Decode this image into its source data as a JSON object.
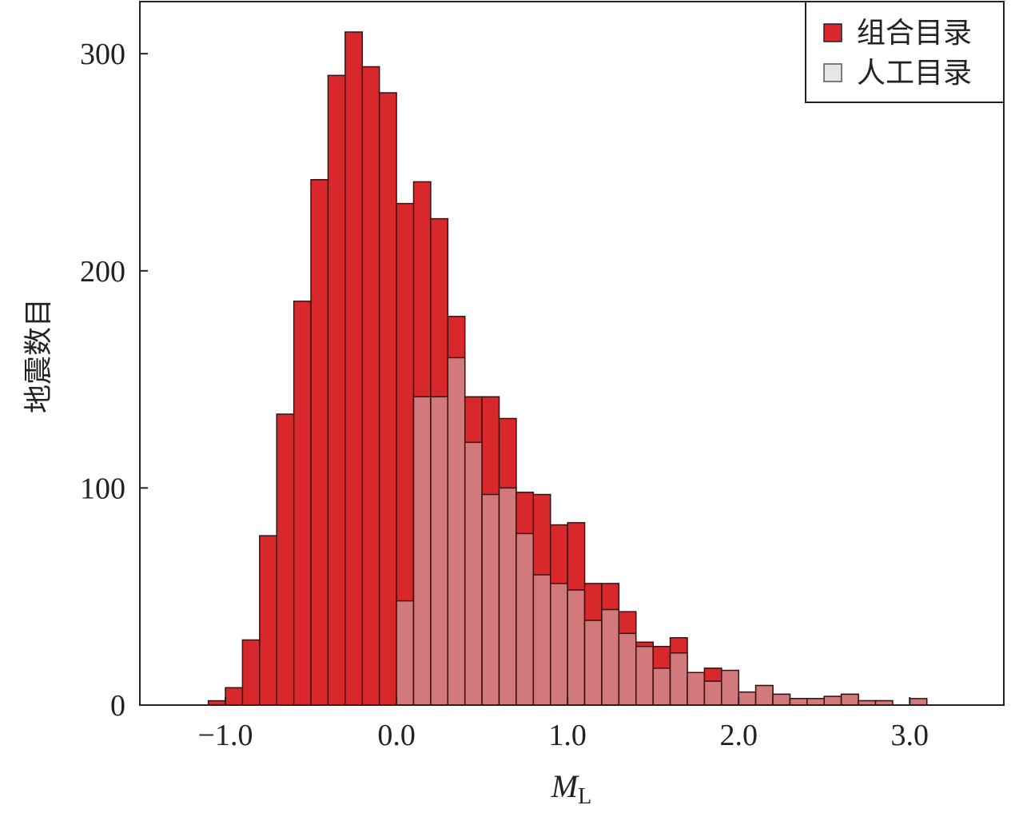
{
  "chart_data": {
    "type": "bar",
    "x_bin_left_edges": [
      -1.1,
      -1.0,
      -0.9,
      -0.8,
      -0.7,
      -0.6,
      -0.5,
      -0.4,
      -0.3,
      -0.2,
      -0.1,
      0.0,
      0.1,
      0.2,
      0.3,
      0.4,
      0.5,
      0.6,
      0.7,
      0.8,
      0.9,
      1.0,
      1.1,
      1.2,
      1.3,
      1.4,
      1.5,
      1.6,
      1.7,
      1.8,
      1.9,
      2.0,
      2.1,
      2.2,
      2.3,
      2.4,
      2.5,
      2.6,
      2.7,
      2.8,
      2.9,
      3.0
    ],
    "series": [
      {
        "name": "组合目录",
        "color": "#d9282b",
        "values": [
          2,
          8,
          30,
          78,
          134,
          186,
          242,
          290,
          310,
          294,
          282,
          231,
          241,
          224,
          179,
          142,
          142,
          132,
          98,
          97,
          83,
          84,
          56,
          56,
          43,
          29,
          27,
          31,
          11,
          17,
          8,
          6,
          9,
          5,
          3,
          3,
          4,
          5,
          2,
          2,
          0,
          2
        ]
      },
      {
        "name": "人工目录",
        "color": "#e6e6e6",
        "values": [
          0,
          0,
          0,
          0,
          0,
          0,
          0,
          0,
          0,
          0,
          0,
          48,
          142,
          142,
          160,
          121,
          97,
          100,
          79,
          60,
          56,
          53,
          39,
          44,
          33,
          27,
          17,
          24,
          15,
          11,
          16,
          6,
          9,
          5,
          3,
          3,
          4,
          5,
          2,
          2,
          0,
          3
        ]
      }
    ],
    "overlap_color": "#d27a7b",
    "xlabel_main": "M",
    "xlabel_sub": "L",
    "ylabel": "地震数目",
    "x_ticks": [
      -1.0,
      0.0,
      1.0,
      2.0,
      3.0
    ],
    "x_tick_labels": [
      "−1.0",
      "0.0",
      "1.0",
      "2.0",
      "3.0"
    ],
    "y_ticks": [
      0,
      100,
      200,
      300
    ],
    "y_tick_labels": [
      "0",
      "100",
      "200",
      "300"
    ],
    "xlim": [
      -1.5,
      3.55
    ],
    "ylim": [
      0,
      324
    ],
    "legend_position": "top-right",
    "grid": false
  }
}
